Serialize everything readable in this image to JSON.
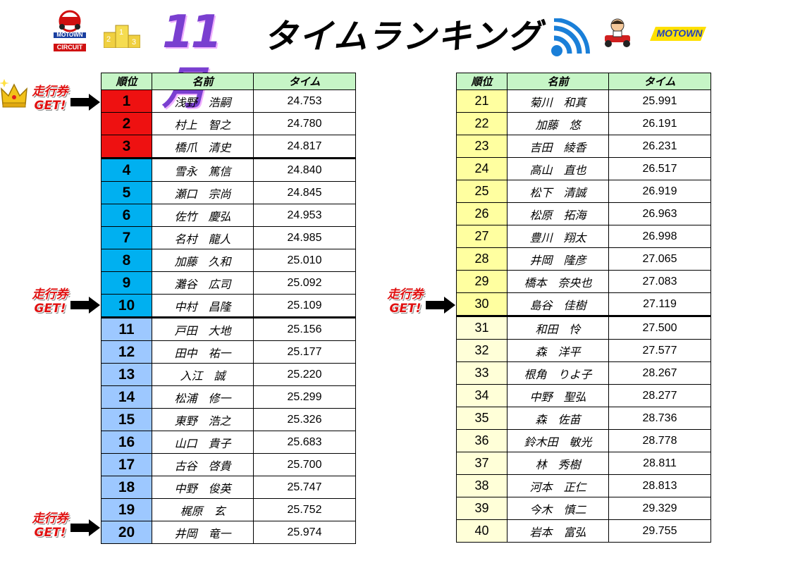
{
  "header": {
    "logo_brand": "MOTOWN",
    "logo_label": "CIRCUIT",
    "month": "11月",
    "title": "タイムランキング",
    "podium_numbers": [
      "2",
      "1",
      "3"
    ]
  },
  "columns": [
    "順位",
    "名前",
    "タイム"
  ],
  "badge_text": [
    "走行券",
    "GET!"
  ],
  "colors": {
    "header_bg": "#c6f5c6",
    "rank_top3": "#ee1111",
    "rank_4_10": "#00b0f0",
    "rank_11_20": "#9dc8ff",
    "rank_21_30": "#ffffa0",
    "rank_31_40": "#ffffd8",
    "badge_text": "#e01010"
  },
  "left_rows": [
    {
      "rank": "1",
      "name": "浅野　浩嗣",
      "time": "24.753"
    },
    {
      "rank": "2",
      "name": "村上　智之",
      "time": "24.780"
    },
    {
      "rank": "3",
      "name": "橋爪　清史",
      "time": "24.817"
    },
    {
      "rank": "4",
      "name": "雪永　篤信",
      "time": "24.840"
    },
    {
      "rank": "5",
      "name": "瀬口　宗尚",
      "time": "24.845"
    },
    {
      "rank": "6",
      "name": "佐竹　慶弘",
      "time": "24.953"
    },
    {
      "rank": "7",
      "name": "名村　龍人",
      "time": "24.985"
    },
    {
      "rank": "8",
      "name": "加藤　久和",
      "time": "25.010"
    },
    {
      "rank": "9",
      "name": "灘谷　広司",
      "time": "25.092"
    },
    {
      "rank": "10",
      "name": "中村　昌隆",
      "time": "25.109"
    },
    {
      "rank": "11",
      "name": "戸田　大地",
      "time": "25.156"
    },
    {
      "rank": "12",
      "name": "田中　祐一",
      "time": "25.177"
    },
    {
      "rank": "13",
      "name": "入江　誠",
      "time": "25.220"
    },
    {
      "rank": "14",
      "name": "松浦　修一",
      "time": "25.299"
    },
    {
      "rank": "15",
      "name": "東野　浩之",
      "time": "25.326"
    },
    {
      "rank": "16",
      "name": "山口　貴子",
      "time": "25.683"
    },
    {
      "rank": "17",
      "name": "古谷　啓貴",
      "time": "25.700"
    },
    {
      "rank": "18",
      "name": "中野　俊英",
      "time": "25.747"
    },
    {
      "rank": "19",
      "name": "梶原　玄",
      "time": "25.752"
    },
    {
      "rank": "20",
      "name": "井岡　竜一",
      "time": "25.974"
    }
  ],
  "right_rows": [
    {
      "rank": "21",
      "name": "菊川　和真",
      "time": "25.991"
    },
    {
      "rank": "22",
      "name": "加藤　悠",
      "time": "26.191"
    },
    {
      "rank": "23",
      "name": "吉田　綾香",
      "time": "26.231"
    },
    {
      "rank": "24",
      "name": "高山　直也",
      "time": "26.517"
    },
    {
      "rank": "25",
      "name": "松下　清誠",
      "time": "26.919"
    },
    {
      "rank": "26",
      "name": "松原　拓海",
      "time": "26.963"
    },
    {
      "rank": "27",
      "name": "豊川　翔太",
      "time": "26.998"
    },
    {
      "rank": "28",
      "name": "井岡　隆彦",
      "time": "27.065"
    },
    {
      "rank": "29",
      "name": "橋本　奈央也",
      "time": "27.083"
    },
    {
      "rank": "30",
      "name": "島谷　佳樹",
      "time": "27.119"
    },
    {
      "rank": "31",
      "name": "和田　怜",
      "time": "27.500"
    },
    {
      "rank": "32",
      "name": "森　洋平",
      "time": "27.577"
    },
    {
      "rank": "33",
      "name": "根角　りよ子",
      "time": "28.267"
    },
    {
      "rank": "34",
      "name": "中野　聖弘",
      "time": "28.277"
    },
    {
      "rank": "35",
      "name": "森　佐苗",
      "time": "28.736"
    },
    {
      "rank": "36",
      "name": "鈴木田　敏光",
      "time": "28.778"
    },
    {
      "rank": "37",
      "name": "林　秀樹",
      "time": "28.811"
    },
    {
      "rank": "38",
      "name": "河本　正仁",
      "time": "28.813"
    },
    {
      "rank": "39",
      "name": "今木　慎二",
      "time": "29.329"
    },
    {
      "rank": "40",
      "name": "岩本　富弘",
      "time": "29.755"
    }
  ]
}
